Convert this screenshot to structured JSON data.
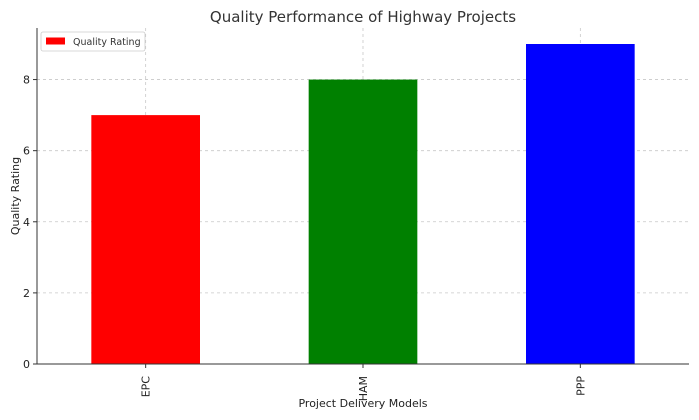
{
  "chart_data": {
    "type": "bar",
    "title": "Quality Performance of Highway Projects",
    "xlabel": "Project Delivery Models",
    "ylabel": "Quality Rating",
    "categories": [
      "EPC",
      "HAM",
      "PPP"
    ],
    "series": [
      {
        "name": "Quality Rating",
        "values": [
          7,
          8,
          9
        ],
        "colors": [
          "#ff0000",
          "#008000",
          "#0000ff"
        ]
      }
    ],
    "ylim": [
      0,
      9.45
    ],
    "yticks": [
      0,
      2,
      4,
      6,
      8
    ],
    "grid": true,
    "legend_position": "top-left"
  }
}
